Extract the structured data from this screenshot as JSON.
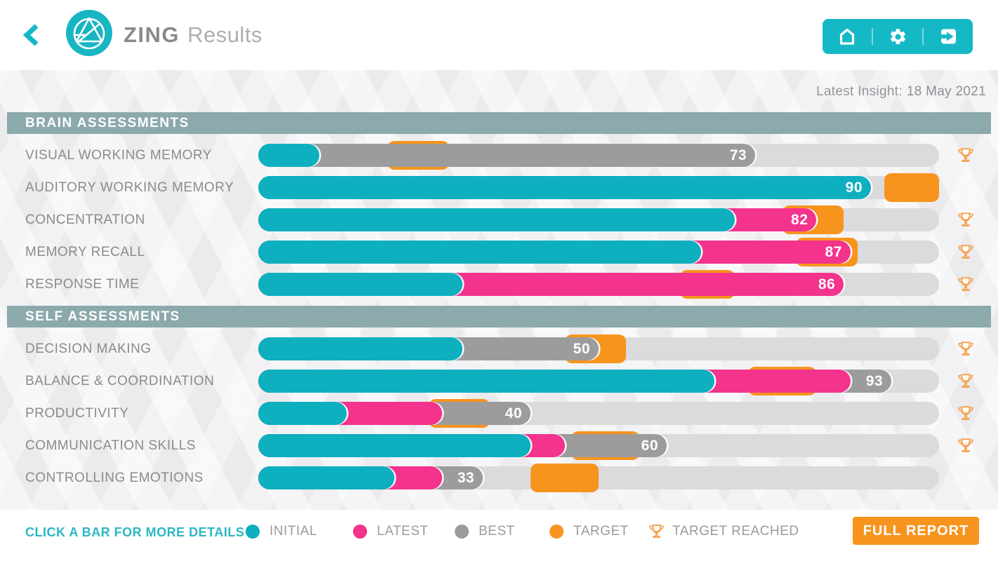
{
  "header": {
    "title_primary": "ZING",
    "title_secondary": "Results",
    "nav_icons": [
      "home-icon",
      "settings-gear-icon",
      "exit-icon"
    ],
    "back_icon": "back-chevron-icon"
  },
  "insight": {
    "label": "Latest Insight:",
    "date": "18 May 2021"
  },
  "colors": {
    "teal": "#0eafbf",
    "pink": "#f3338c",
    "best_gray": "#9c9c9d",
    "track_gray": "#dbdbdd",
    "orange": "#f7941e",
    "trophy_orange": "#f6a350",
    "section_bar": "#8ca9ac",
    "nav_teal": "#15b9c6"
  },
  "sections": [
    {
      "title": "BRAIN ASSESSMENTS",
      "rows": [
        {
          "label": "VISUAL WORKING MEMORY",
          "score": 73,
          "initial": 9,
          "latest": null,
          "best": 73,
          "target_start": 19,
          "target_end": 28,
          "target_reached": true
        },
        {
          "label": "AUDITORY WORKING MEMORY",
          "score": 90,
          "initial": 90,
          "latest": null,
          "best": null,
          "target_start": 92,
          "target_end": 100,
          "target_reached": false
        },
        {
          "label": "CONCENTRATION",
          "score": 82,
          "initial": 70,
          "latest": 82,
          "best": null,
          "target_start": 77,
          "target_end": 86,
          "target_reached": true
        },
        {
          "label": "MEMORY RECALL",
          "score": 87,
          "initial": 65,
          "latest": 87,
          "best": null,
          "target_start": 79,
          "target_end": 88,
          "target_reached": true
        },
        {
          "label": "RESPONSE TIME",
          "score": 86,
          "initial": 30,
          "latest": 86,
          "best": null,
          "target_start": 62,
          "target_end": 70,
          "target_reached": true
        }
      ]
    },
    {
      "title": "SELF ASSESSMENTS",
      "rows": [
        {
          "label": "DECISION MAKING",
          "score": 50,
          "initial": 30,
          "latest": null,
          "best": 50,
          "target_start": 45,
          "target_end": 54,
          "target_reached": true
        },
        {
          "label": "BALANCE & COORDINATION",
          "score": 93,
          "initial": 67,
          "latest": 87,
          "best": 93,
          "target_start": 72,
          "target_end": 82,
          "target_reached": true
        },
        {
          "label": "PRODUCTIVITY",
          "score": 40,
          "initial": 13,
          "latest": 27,
          "best": 40,
          "target_start": 25,
          "target_end": 34,
          "target_reached": true
        },
        {
          "label": "COMMUNICATION SKILLS",
          "score": 60,
          "initial": 40,
          "latest": 45,
          "best": 60,
          "target_start": 46,
          "target_end": 56,
          "target_reached": true
        },
        {
          "label": "CONTROLLING EMOTIONS",
          "score": 33,
          "initial": 20,
          "latest": 27,
          "best": 33,
          "target_start": 40,
          "target_end": 50,
          "target_reached": false
        }
      ]
    }
  ],
  "footer": {
    "hint": "CLICK A BAR FOR MORE DETAILS",
    "legend": [
      {
        "label": "INITIAL",
        "color": "#0eafbf"
      },
      {
        "label": "LATEST",
        "color": "#f3338c"
      },
      {
        "label": "BEST",
        "color": "#9c9c9d"
      },
      {
        "label": "TARGET",
        "color": "#f7941e"
      },
      {
        "label": "TARGET REACHED",
        "icon": "trophy"
      }
    ],
    "report_button": "FULL REPORT"
  }
}
